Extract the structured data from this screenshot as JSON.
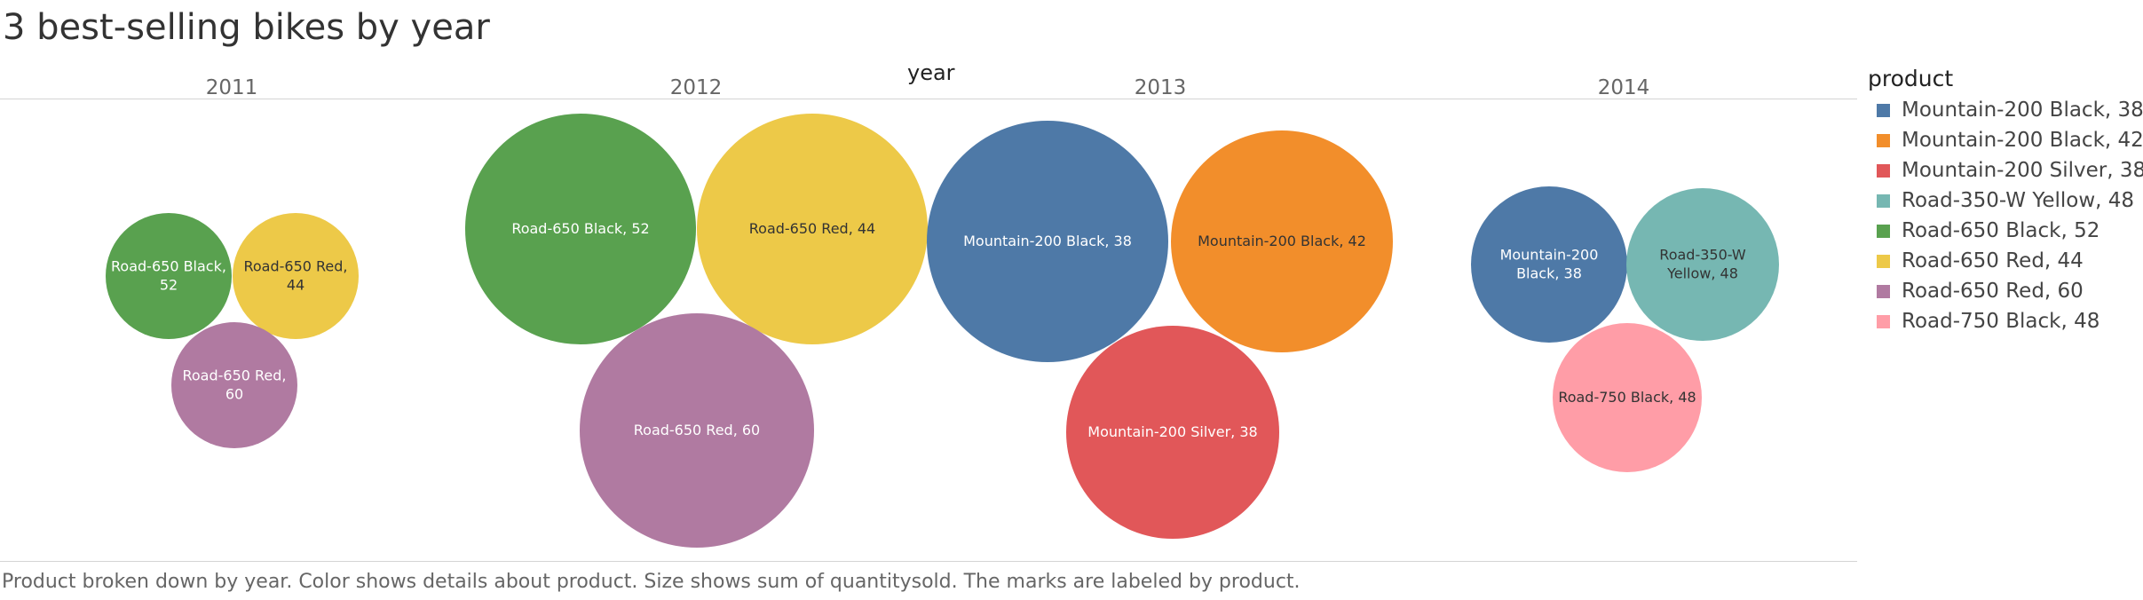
{
  "title": "3 best-selling bikes by year",
  "column_header": "year",
  "caption": "Product broken down by year.  Color shows details about product.  Size shows sum of quantitysold.  The marks are labeled by product.",
  "legend": {
    "title": "product",
    "items": [
      {
        "label": "Mountain-200 Black, 38",
        "color": "#4e79a7"
      },
      {
        "label": "Mountain-200 Black, 42",
        "color": "#f28e2b"
      },
      {
        "label": "Mountain-200 Silver, 38",
        "color": "#e15759"
      },
      {
        "label": "Road-350-W Yellow, 48",
        "color": "#76b7b2"
      },
      {
        "label": "Road-650 Black, 52",
        "color": "#59a14f"
      },
      {
        "label": "Road-650 Red, 44",
        "color": "#edc948"
      },
      {
        "label": "Road-650 Red, 60",
        "color": "#b07aa1"
      },
      {
        "label": "Road-750 Black, 48",
        "color": "#ff9da7"
      }
    ]
  },
  "chart_data": {
    "type": "packed-bubble",
    "title": "3 best-selling bikes by year",
    "column_field": "year",
    "size_measure": "sum of quantitysold",
    "columns": [
      {
        "year": "2011",
        "bubbles": [
          {
            "product": "Road-650 Black, 52",
            "label_lines": [
              "Road-650 Black,",
              "52"
            ],
            "color": "#59a14f",
            "text_color": "#ffffff",
            "size": 1
          },
          {
            "product": "Road-650 Red, 44",
            "label_lines": [
              "Road-650 Red,",
              "44"
            ],
            "color": "#edc948",
            "text_color": "#333333",
            "size": 1
          },
          {
            "product": "Road-650 Red, 60",
            "label_lines": [
              "Road-650 Red,",
              "60"
            ],
            "color": "#b07aa1",
            "text_color": "#ffffff",
            "size": 1
          }
        ]
      },
      {
        "year": "2012",
        "bubbles": [
          {
            "product": "Road-650 Black, 52",
            "label_lines": [
              "Road-650 Black, 52"
            ],
            "color": "#59a14f",
            "text_color": "#ffffff",
            "size": 3.5
          },
          {
            "product": "Road-650 Red, 44",
            "label_lines": [
              "Road-650 Red, 44"
            ],
            "color": "#edc948",
            "text_color": "#333333",
            "size": 3.5
          },
          {
            "product": "Road-650 Red, 60",
            "label_lines": [
              "Road-650 Red, 60"
            ],
            "color": "#b07aa1",
            "text_color": "#ffffff",
            "size": 3.6
          }
        ]
      },
      {
        "year": "2013",
        "bubbles": [
          {
            "product": "Mountain-200 Black, 38",
            "label_lines": [
              "Mountain-200 Black, 38"
            ],
            "color": "#4e79a7",
            "text_color": "#ffffff",
            "size": 3.75
          },
          {
            "product": "Mountain-200 Black, 42",
            "label_lines": [
              "Mountain-200 Black, 42"
            ],
            "color": "#f28e2b",
            "text_color": "#333333",
            "size": 3.2
          },
          {
            "product": "Mountain-200 Silver, 38",
            "label_lines": [
              "Mountain-200 Silver, 38"
            ],
            "color": "#e15759",
            "text_color": "#ffffff",
            "size": 2.95
          }
        ]
      },
      {
        "year": "2014",
        "bubbles": [
          {
            "product": "Mountain-200 Black, 38",
            "label_lines": [
              "Mountain-200",
              "Black, 38"
            ],
            "color": "#4e79a7",
            "text_color": "#ffffff",
            "size": 1.6
          },
          {
            "product": "Road-350-W Yellow, 48",
            "label_lines": [
              "Road-350-W",
              "Yellow, 48"
            ],
            "color": "#76b7b2",
            "text_color": "#333333",
            "size": 1.53
          },
          {
            "product": "Road-750 Black, 48",
            "label_lines": [
              "Road-750 Black, 48"
            ],
            "color": "#ff9da7",
            "text_color": "#333333",
            "size": 1.47
          }
        ]
      }
    ]
  }
}
